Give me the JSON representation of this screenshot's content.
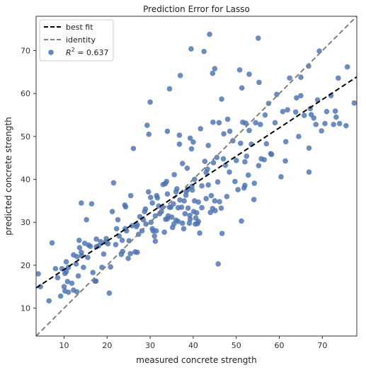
{
  "chart_data": {
    "type": "scatter",
    "title": "Prediction Error for Lasso",
    "xlabel": "measured concrete strength",
    "ylabel": "predicted concrete strength",
    "xlim": [
      3.5,
      78
    ],
    "ylim": [
      3.5,
      78
    ],
    "xticks": [
      10,
      20,
      30,
      40,
      50,
      60,
      70
    ],
    "yticks": [
      10,
      20,
      30,
      40,
      50,
      60,
      70
    ],
    "grid": false,
    "legend_position": "top-left",
    "legend": [
      {
        "label": "best fit",
        "style": "dashed",
        "color": "#000000"
      },
      {
        "label": "identity",
        "style": "dashed",
        "color": "#808080"
      },
      {
        "label": "R^2 = 0.637",
        "style": "marker",
        "color": "#4c72b0"
      }
    ],
    "legend_r2": {
      "label_symbol": "R",
      "label_exp": "2",
      "label_rest": " = 0.637"
    },
    "best_fit": {
      "slope": 0.66,
      "intercept": 12.4,
      "color": "#000000"
    },
    "identity": {
      "color": "#808080"
    },
    "point_color": "#4c72b0",
    "points": [
      [
        4,
        18
      ],
      [
        4.5,
        15
      ],
      [
        6.5,
        11.7
      ],
      [
        7.2,
        25.2
      ],
      [
        8,
        19.2
      ],
      [
        8.5,
        17.1
      ],
      [
        9.2,
        12.8
      ],
      [
        9.5,
        19.2
      ],
      [
        10,
        15
      ],
      [
        10.2,
        14
      ],
      [
        10.2,
        18.1
      ],
      [
        10.5,
        20.8
      ],
      [
        10.5,
        18.5
      ],
      [
        10.8,
        16.2
      ],
      [
        11,
        13.7
      ],
      [
        11,
        19.5
      ],
      [
        11.8,
        15.8
      ],
      [
        12.2,
        22.4
      ],
      [
        12.2,
        14.2
      ],
      [
        12.8,
        20.3
      ],
      [
        13,
        13.8
      ],
      [
        13,
        22
      ],
      [
        13.3,
        17.5
      ],
      [
        13.5,
        25.8
      ],
      [
        13.6,
        24.1
      ],
      [
        14,
        34.5
      ],
      [
        14,
        23
      ],
      [
        14.1,
        22.2
      ],
      [
        14.5,
        19.5
      ],
      [
        14.8,
        25.1
      ],
      [
        15.2,
        30.6
      ],
      [
        15.5,
        21.8
      ],
      [
        15.7,
        24.7
      ],
      [
        16.1,
        24.4
      ],
      [
        16.4,
        34.3
      ],
      [
        16.7,
        18.3
      ],
      [
        17.2,
        16.3
      ],
      [
        17.4,
        16.3
      ],
      [
        17.5,
        24.3
      ],
      [
        17.5,
        26.1
      ],
      [
        18,
        24.5
      ],
      [
        18.5,
        25.5
      ],
      [
        18.8,
        19.5
      ],
      [
        19.2,
        22.6
      ],
      [
        19.6,
        25.4
      ],
      [
        19.8,
        26.2
      ],
      [
        20.2,
        25
      ],
      [
        20.5,
        13.5
      ],
      [
        20.8,
        19.6
      ],
      [
        21.2,
        32.5
      ],
      [
        21.5,
        39.2
      ],
      [
        22,
        24.8
      ],
      [
        22.2,
        28.5
      ],
      [
        22.5,
        30.6
      ],
      [
        22.8,
        26.8
      ],
      [
        23.3,
        22.5
      ],
      [
        23.5,
        25.8
      ],
      [
        23.6,
        23.2
      ],
      [
        24.1,
        34
      ],
      [
        24.2,
        28.5
      ],
      [
        24.3,
        33.6
      ],
      [
        24.5,
        28
      ],
      [
        24.9,
        21.6
      ],
      [
        25.1,
        25.7
      ],
      [
        25.4,
        22.7
      ],
      [
        25.5,
        36.2
      ],
      [
        25.8,
        29.2
      ],
      [
        26.1,
        47.2
      ],
      [
        26.5,
        23.1
      ],
      [
        26.8,
        29
      ],
      [
        27,
        29.4
      ],
      [
        27,
        23
      ],
      [
        27.3,
        27.2
      ],
      [
        27.6,
        31.3
      ],
      [
        28.1,
        28
      ],
      [
        28.4,
        30.6
      ],
      [
        28.7,
        32.5
      ],
      [
        28.9,
        33.1
      ],
      [
        29,
        29.6
      ],
      [
        29.3,
        52.6
      ],
      [
        29.6,
        37.1
      ],
      [
        29.7,
        50.5
      ],
      [
        30,
        58
      ],
      [
        30.1,
        35.8
      ],
      [
        30.2,
        30
      ],
      [
        30.5,
        34.5
      ],
      [
        30.5,
        28.5
      ],
      [
        30.7,
        28
      ],
      [
        31,
        26.8
      ],
      [
        31.2,
        31.5
      ],
      [
        31.2,
        25.6
      ],
      [
        31.4,
        28
      ],
      [
        31.5,
        36.2
      ],
      [
        31.7,
        35.7
      ],
      [
        32,
        33.8
      ],
      [
        32.2,
        32
      ],
      [
        32.6,
        32.5
      ],
      [
        32.9,
        33.5
      ],
      [
        33,
        38.8
      ],
      [
        33.3,
        27.7
      ],
      [
        33.5,
        39
      ],
      [
        33.6,
        30.7
      ],
      [
        33.8,
        39.5
      ],
      [
        34,
        51.2
      ],
      [
        34,
        36.6
      ],
      [
        34,
        30.8
      ],
      [
        34.2,
        31.5
      ],
      [
        34.5,
        61.1
      ],
      [
        34.5,
        33.5
      ],
      [
        34.8,
        33.5
      ],
      [
        35,
        31.2
      ],
      [
        35.2,
        28.8
      ],
      [
        35.4,
        34.3
      ],
      [
        35.5,
        29.6
      ],
      [
        35.6,
        41.1
      ],
      [
        36,
        37.1
      ],
      [
        36,
        30.5
      ],
      [
        36.2,
        37.8
      ],
      [
        36.5,
        33.4
      ],
      [
        36.5,
        30.2
      ],
      [
        36.8,
        50.3
      ],
      [
        36.8,
        48.2
      ],
      [
        36.9,
        35.2
      ],
      [
        37,
        64.2
      ],
      [
        37.3,
        33.5
      ],
      [
        37.5,
        29.8
      ],
      [
        37.5,
        43.7
      ],
      [
        37.8,
        28.5
      ],
      [
        37.9,
        35
      ],
      [
        38.1,
        32
      ],
      [
        38.3,
        36.3
      ],
      [
        38.4,
        37.2
      ],
      [
        38.6,
        42.6
      ],
      [
        38.8,
        33.3
      ],
      [
        38.8,
        37.7
      ],
      [
        39.1,
        29.8
      ],
      [
        39.2,
        31.6
      ],
      [
        39.3,
        30.7
      ],
      [
        39.3,
        49.6
      ],
      [
        39.5,
        70.4
      ],
      [
        39.6,
        47.1
      ],
      [
        39.7,
        38.4
      ],
      [
        39.8,
        37.5
      ],
      [
        40,
        48.7
      ],
      [
        40.1,
        32.5
      ],
      [
        40.3,
        35
      ],
      [
        40.3,
        40
      ],
      [
        40.5,
        29.6
      ],
      [
        40.6,
        31
      ],
      [
        40.8,
        32.2
      ],
      [
        41,
        29.7
      ],
      [
        41.2,
        30.2
      ],
      [
        41.2,
        34.7
      ],
      [
        41.5,
        27.5
      ],
      [
        41.7,
        51.8
      ],
      [
        42,
        33.4
      ],
      [
        42,
        38.5
      ],
      [
        42.5,
        69.8
      ],
      [
        42.7,
        44.2
      ],
      [
        43,
        35.5
      ],
      [
        43,
        41.6
      ],
      [
        43.3,
        42.4
      ],
      [
        43.5,
        47.9
      ],
      [
        43.5,
        38.7
      ],
      [
        43.8,
        73.8
      ],
      [
        44,
        32.3
      ],
      [
        44.2,
        36.2
      ],
      [
        44.5,
        33.2
      ],
      [
        44.5,
        64.7
      ],
      [
        44.6,
        53.3
      ],
      [
        44.7,
        43.9
      ],
      [
        45,
        65.8
      ],
      [
        45,
        35
      ],
      [
        45.1,
        32.7
      ],
      [
        45.5,
        45.1
      ],
      [
        45.7,
        39.4
      ],
      [
        45.8,
        20.3
      ],
      [
        46,
        53.2
      ],
      [
        46.1,
        34.8
      ],
      [
        46.5,
        33.3
      ],
      [
        46.6,
        58.7
      ],
      [
        46.7,
        27.4
      ],
      [
        47.1,
        50.6
      ],
      [
        47.5,
        43.3
      ],
      [
        47.8,
        36
      ],
      [
        48,
        54
      ],
      [
        48.4,
        41.7
      ],
      [
        48.5,
        51.2
      ],
      [
        49.2,
        49
      ],
      [
        49.7,
        39.5
      ],
      [
        50,
        44.4
      ],
      [
        50.4,
        37.6
      ],
      [
        50.8,
        65.5
      ],
      [
        51,
        48.4
      ],
      [
        51.2,
        30.3
      ],
      [
        51.3,
        61.3
      ],
      [
        51.5,
        53.3
      ],
      [
        51.8,
        38
      ],
      [
        52,
        38.6
      ],
      [
        52,
        44.1
      ],
      [
        52.2,
        53.1
      ],
      [
        52.4,
        45.4
      ],
      [
        52.8,
        41
      ],
      [
        53,
        64.5
      ],
      [
        53,
        51.4
      ],
      [
        53.5,
        48.2
      ],
      [
        54.1,
        35.3
      ],
      [
        54.2,
        39.1
      ],
      [
        54.5,
        53.2
      ],
      [
        55.1,
        72.9
      ],
      [
        55.2,
        43.2
      ],
      [
        55.3,
        62.6
      ],
      [
        55.6,
        52.8
      ],
      [
        55.8,
        44.8
      ],
      [
        56.5,
        44.6
      ],
      [
        56.7,
        55
      ],
      [
        57,
        48.3
      ],
      [
        57.5,
        57.7
      ],
      [
        58.2,
        45.8
      ],
      [
        59,
        53.2
      ],
      [
        59.4,
        59.8
      ],
      [
        60.4,
        40.6
      ],
      [
        60.8,
        55.8
      ],
      [
        61.4,
        44.3
      ],
      [
        61.9,
        56.2
      ],
      [
        62.4,
        63.6
      ],
      [
        63.8,
        55.7
      ],
      [
        64,
        59
      ],
      [
        65,
        59.5
      ],
      [
        65,
        63.8
      ],
      [
        65.8,
        54.9
      ],
      [
        66.8,
        66.4
      ],
      [
        66.9,
        41.7
      ],
      [
        66.9,
        47.3
      ],
      [
        67.2,
        56.5
      ],
      [
        67.4,
        55.1
      ],
      [
        68,
        54.3
      ],
      [
        68.5,
        52.8
      ],
      [
        68.9,
        58.5
      ],
      [
        69.3,
        69.9
      ],
      [
        69.8,
        51.3
      ],
      [
        70.6,
        53
      ],
      [
        71,
        55.8
      ],
      [
        72,
        59.5
      ],
      [
        72.6,
        52.8
      ],
      [
        73,
        55.9
      ],
      [
        73.7,
        63.6
      ],
      [
        74,
        53
      ],
      [
        75.8,
        66.2
      ],
      [
        77.4,
        57.8
      ],
      [
        75.5,
        52.5
      ],
      [
        73.2,
        54.5
      ],
      [
        61.5,
        48.8
      ],
      [
        58,
        46
      ],
      [
        64.5,
        50
      ],
      [
        47,
        44.8
      ]
    ]
  }
}
